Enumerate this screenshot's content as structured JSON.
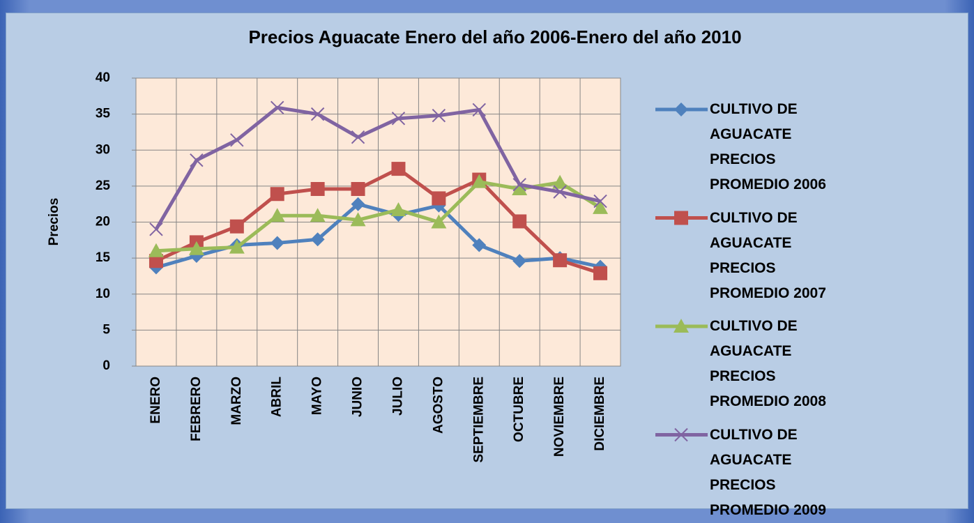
{
  "chart_data": {
    "type": "line",
    "title": "Precios Aguacate Enero del año 2006-Enero del año 2010",
    "y_label": "Precios",
    "categories": [
      "ENERO",
      "FEBRERO",
      "MARZO",
      "ABRIL",
      "MAYO",
      "JUNIO",
      "JULIO",
      "AGOSTO",
      "SEPTIEMBRE",
      "OCTUBRE",
      "NOVIEMBRE",
      "DICIEMBRE"
    ],
    "series": [
      {
        "name": "CULTIVO DE AGUACATE PRECIOS PROMEDIO 2006",
        "color": "#4f81bd",
        "marker": "diamond",
        "values": [
          13.7,
          15.3,
          16.8,
          17.1,
          17.6,
          22.5,
          21.0,
          22.3,
          16.8,
          14.6,
          15.0,
          13.8
        ]
      },
      {
        "name": "CULTIVO DE AGUACATE PRECIOS PROMEDIO 2007",
        "color": "#c0504d",
        "marker": "square",
        "values": [
          14.6,
          17.2,
          19.4,
          23.9,
          24.6,
          24.6,
          27.4,
          23.3,
          25.9,
          20.1,
          14.7,
          12.9
        ]
      },
      {
        "name": "CULTIVO DE AGUACATE PRECIOS PROMEDIO 2008",
        "color": "#9bbb59",
        "marker": "triangle",
        "values": [
          16.0,
          16.3,
          16.5,
          20.9,
          20.9,
          20.3,
          21.7,
          20.0,
          25.6,
          24.6,
          25.5,
          22.0
        ]
      },
      {
        "name": "CULTIVO DE AGUACATE PRECIOS PROMEDIO 2009",
        "color": "#8064a2",
        "marker": "x",
        "values": [
          19.0,
          28.6,
          31.4,
          35.9,
          35.0,
          31.8,
          34.4,
          34.8,
          35.6,
          25.2,
          24.2,
          22.9
        ]
      }
    ],
    "ylim": [
      0,
      40
    ],
    "yticks": [
      0,
      5,
      10,
      15,
      20,
      25,
      30,
      35,
      40
    ],
    "grid": true,
    "legend": "right"
  }
}
